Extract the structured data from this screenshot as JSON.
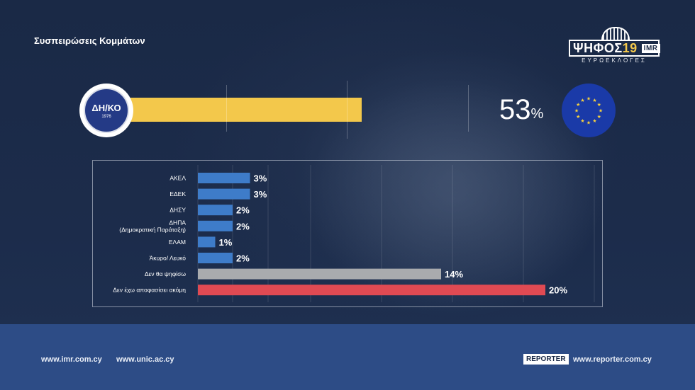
{
  "title": "Συσπειρώσεις Κομμάτων",
  "logo": {
    "main": "ΨΗΦΟΣ",
    "num": "19",
    "imr": "IMR",
    "sub": "ΕΥΡΩΕΚΛΟΓΕΣ"
  },
  "top_party": {
    "badge_text": "ΔΗ/ΚΟ",
    "badge_year": "1976",
    "percent": "53",
    "percent_sign": "%",
    "value": 53,
    "color": "#f3c84b"
  },
  "chart_data": {
    "type": "bar",
    "orientation": "horizontal",
    "categories": [
      "ΑΚΕΛ",
      "ΕΔΕΚ",
      "ΔΗΣΥ",
      "ΔΗΠΑ\n(Δημοκρατική Παράταξη)",
      "ΕΛΑΜ",
      "Άκυρο/ Λευκό",
      "Δεν θα ψηφίσω",
      "Δεν έχω αποφασίσει ακόμη"
    ],
    "values": [
      3,
      3,
      2,
      2,
      1,
      2,
      14,
      20
    ],
    "labels": [
      "3%",
      "3%",
      "2%",
      "2%",
      "1%",
      "2%",
      "14%",
      "20%"
    ],
    "colors": [
      "#3e7cc9",
      "#3e7cc9",
      "#3e7cc9",
      "#3e7cc9",
      "#3e7cc9",
      "#3e7cc9",
      "#a9abae",
      "#e04a53"
    ],
    "xlim": [
      0,
      20
    ],
    "grid": true,
    "title": "",
    "xlabel": "",
    "ylabel": ""
  },
  "footer": {
    "link1": "www.imr.com.cy",
    "link2": "www.unic.ac.cy",
    "reporter_logo": "REPORTER",
    "link3": "www.reporter.com.cy"
  }
}
